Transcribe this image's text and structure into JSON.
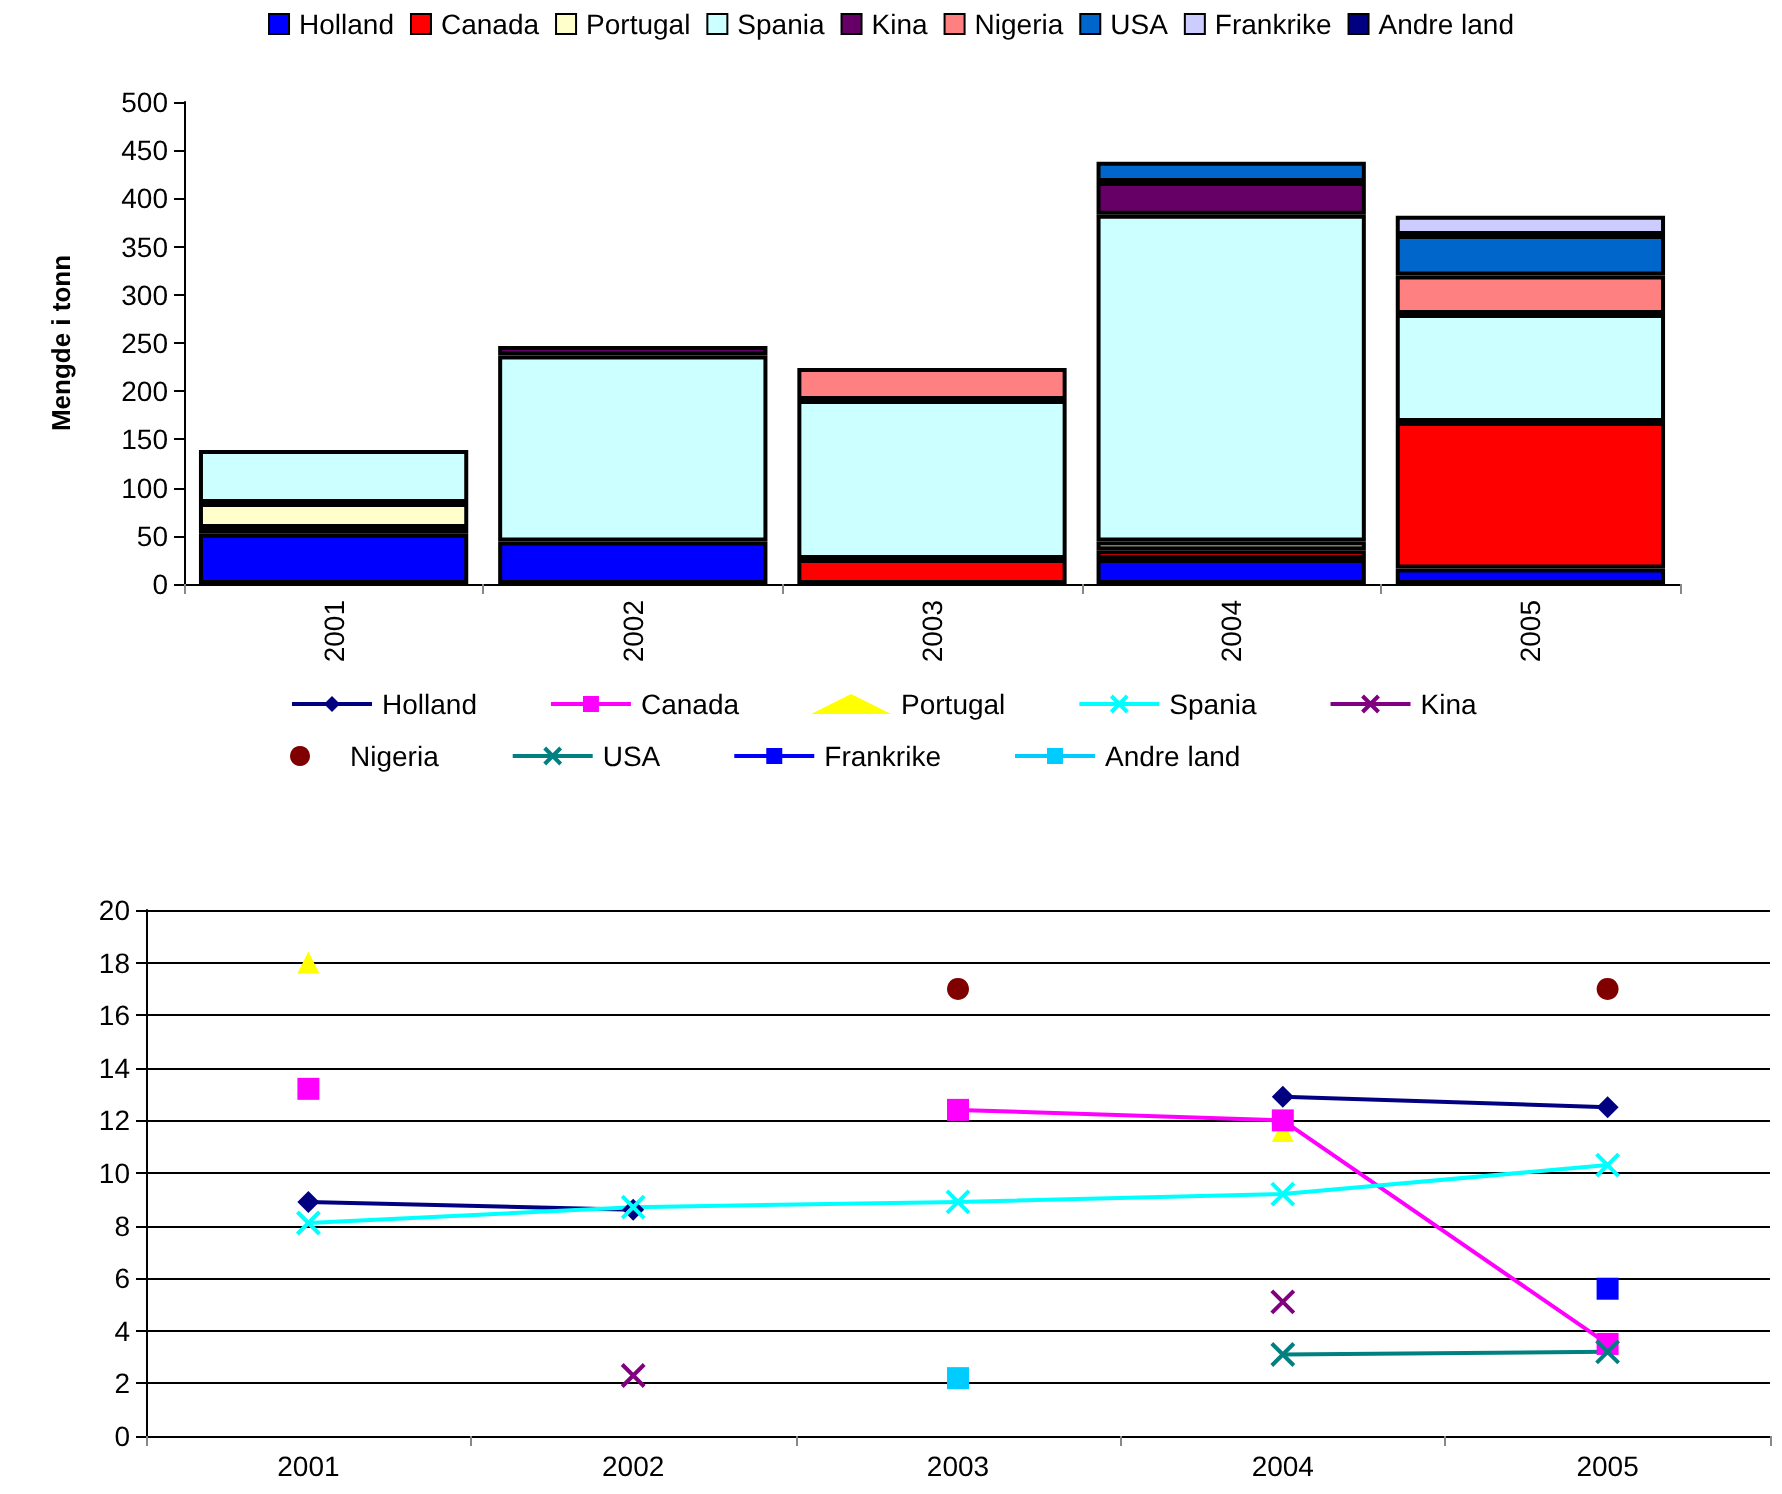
{
  "chart_data": [
    {
      "type": "bar",
      "stacked": true,
      "ylabel": "Mengde i tonn",
      "categories": [
        "2001",
        "2002",
        "2003",
        "2004",
        "2005"
      ],
      "ylim": [
        0,
        500
      ],
      "yticks": [
        0,
        50,
        100,
        150,
        200,
        250,
        300,
        350,
        400,
        450,
        500
      ],
      "grid": false,
      "legend": "top",
      "series": [
        {
          "name": "Holland",
          "color": "#0000ff",
          "values": [
            52,
            44,
            null,
            26,
            16
          ]
        },
        {
          "name": "Canada",
          "color": "#ff0000",
          "values": [
            6,
            null,
            26,
            9,
            152
          ]
        },
        {
          "name": "Portugal",
          "color": "#ffffcc",
          "values": [
            26,
            null,
            null,
            9,
            null
          ]
        },
        {
          "name": "Spania",
          "color": "#ccffff",
          "values": [
            55,
            193,
            165,
            339,
            112
          ]
        },
        {
          "name": "Kina",
          "color": "#660066",
          "values": [
            null,
            10,
            null,
            34,
            null
          ]
        },
        {
          "name": "Nigeria",
          "color": "#ff8080",
          "values": [
            null,
            null,
            33,
            null,
            40
          ]
        },
        {
          "name": "USA",
          "color": "#0066cc",
          "values": [
            null,
            null,
            null,
            21,
            42
          ]
        },
        {
          "name": "Frankrike",
          "color": "#ccccff",
          "values": [
            null,
            null,
            null,
            null,
            20
          ]
        },
        {
          "name": "Andre land",
          "color": "#000080",
          "values": [
            null,
            null,
            null,
            null,
            null
          ]
        }
      ]
    },
    {
      "type": "line",
      "categories": [
        "2001",
        "2002",
        "2003",
        "2004",
        "2005"
      ],
      "ylim": [
        0,
        20
      ],
      "yticks": [
        0,
        2,
        4,
        6,
        8,
        10,
        12,
        14,
        16,
        18,
        20
      ],
      "grid": "y",
      "legend": "top",
      "series": [
        {
          "name": "Holland",
          "color": "#000080",
          "marker": "diamond",
          "values": [
            8.9,
            8.6,
            null,
            12.9,
            12.5
          ]
        },
        {
          "name": "Canada",
          "color": "#ff00ff",
          "marker": "square",
          "values": [
            13.2,
            null,
            12.4,
            12.0,
            3.5
          ]
        },
        {
          "name": "Portugal",
          "type": "scatter",
          "color": "#ffff00",
          "marker": "triangle",
          "values": [
            18,
            null,
            null,
            11.6,
            null
          ]
        },
        {
          "name": "Spania",
          "color": "#00ffff",
          "marker": "cross",
          "values": [
            8.1,
            8.7,
            8.9,
            9.2,
            10.3
          ]
        },
        {
          "name": "Kina",
          "color": "#800080",
          "marker": "cross",
          "values": [
            null,
            2.3,
            null,
            5.1,
            null
          ]
        },
        {
          "name": "Nigeria",
          "type": "scatter",
          "color": "#800000",
          "marker": "circle",
          "values": [
            null,
            null,
            17,
            null,
            17
          ]
        },
        {
          "name": "USA",
          "color": "#008080",
          "marker": "cross",
          "values": [
            null,
            null,
            null,
            3.1,
            3.2
          ]
        },
        {
          "name": "Frankrike",
          "color": "#0000ff",
          "marker": "square",
          "values": [
            null,
            null,
            null,
            null,
            5.6
          ]
        },
        {
          "name": "Andre land",
          "color": "#00ccff",
          "marker": "square",
          "values": [
            null,
            null,
            2.2,
            null,
            null
          ]
        }
      ]
    }
  ]
}
